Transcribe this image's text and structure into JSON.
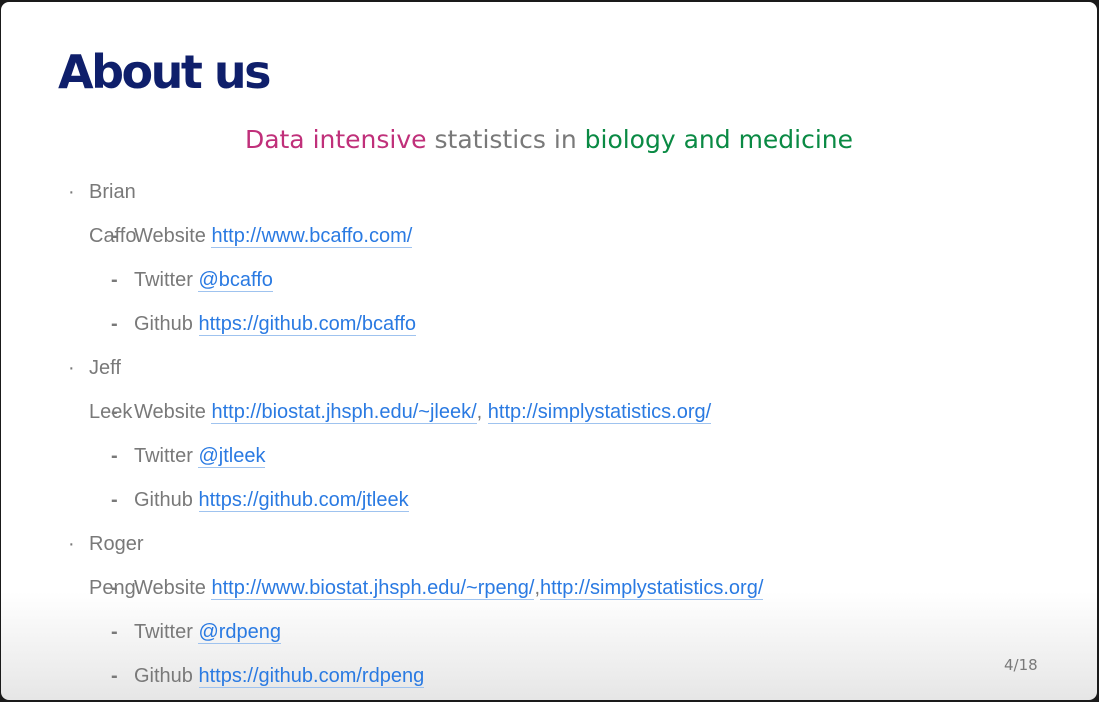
{
  "slide": {
    "title": "About us",
    "subtitle": {
      "part1": "Data intensive",
      "part2": " statistics in ",
      "part3": "biology and medicine"
    },
    "people": [
      {
        "name": "Brian Caffo",
        "website_label": "Website",
        "website_links": [
          "http://www.bcaffo.com/"
        ],
        "twitter_label": "Twitter",
        "twitter": "@bcaffo",
        "github_label": "Github",
        "github": "https://github.com/bcaffo"
      },
      {
        "name": "Jeff Leek",
        "website_label": "Website",
        "website_links": [
          "http://biostat.jhsph.edu/~jleek/",
          "http://simplystatistics.org/"
        ],
        "website_separator": ", ",
        "twitter_label": "Twitter",
        "twitter": "@jtleek",
        "github_label": "Github",
        "github": "https://github.com/jtleek"
      },
      {
        "name": "Roger Peng",
        "website_label": "Website",
        "website_links": [
          "http://www.biostat.jhsph.edu/~rpeng/",
          "http://simplystatistics.org/"
        ],
        "website_separator": ",",
        "twitter_label": "Twitter",
        "twitter": "@rdpeng",
        "github_label": "Github",
        "github": "https://github.com/rdpeng"
      }
    ],
    "bullet": "·",
    "dash": "-",
    "page_number": "4/18"
  },
  "colors": {
    "title": "#0f1f6b",
    "accent_pink": "#c0307a",
    "accent_green": "#0a8a44",
    "link": "#2a7ae2",
    "body_text": "#797979"
  }
}
